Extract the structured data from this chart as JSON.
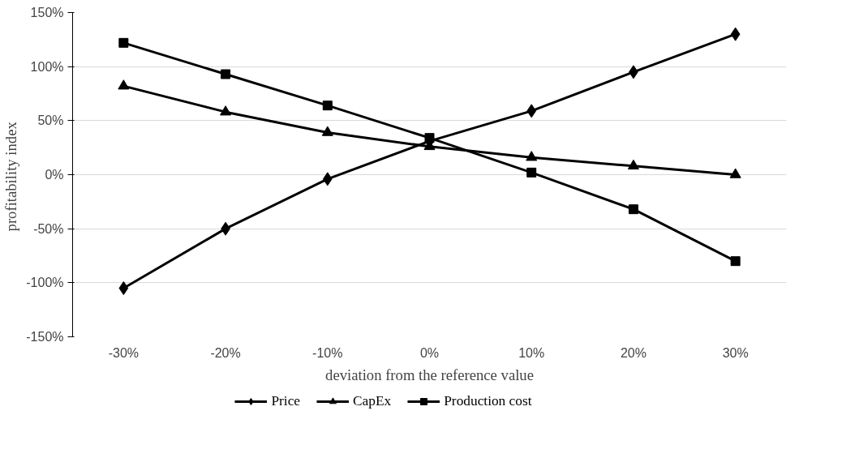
{
  "chart_data": {
    "type": "line",
    "xlabel": "deviation from the reference value",
    "ylabel": "profitability  index",
    "categories": [
      "-30%",
      "-20%",
      "-10%",
      "0%",
      "10%",
      "20%",
      "30%"
    ],
    "series": [
      {
        "name": "Price",
        "color": "#000000",
        "marker": "diamond",
        "values": [
          -105,
          -50,
          -4,
          31,
          59,
          95,
          130
        ]
      },
      {
        "name": "CapEx",
        "color": "#000000",
        "marker": "triangle",
        "values": [
          82,
          58,
          39,
          26,
          16,
          8,
          0
        ]
      },
      {
        "name": "Production cost",
        "color": "#000000",
        "marker": "square",
        "values": [
          122,
          93,
          64,
          34,
          2,
          -32,
          -80
        ]
      }
    ],
    "ylim": [
      -150,
      150
    ],
    "yticks": [
      {
        "value": -150,
        "label": "-150%"
      },
      {
        "value": -100,
        "label": "-100%"
      },
      {
        "value": -50,
        "label": "-50%"
      },
      {
        "value": 0,
        "label": "0%"
      },
      {
        "value": 50,
        "label": "50%"
      },
      {
        "value": 100,
        "label": "100%"
      },
      {
        "value": 150,
        "label": "150%"
      }
    ],
    "grid": "y",
    "legend": "bottom",
    "line_style": "solid"
  }
}
